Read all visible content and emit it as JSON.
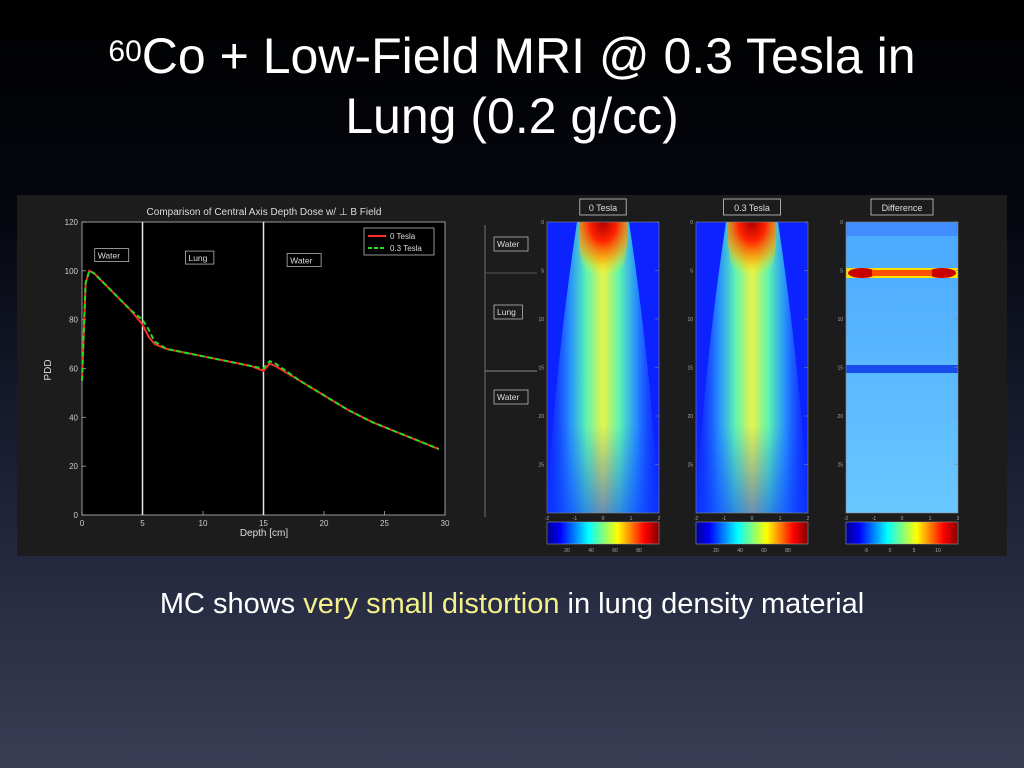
{
  "slide": {
    "title_sup": "60",
    "title_line1_rest": "Co + Low-Field MRI @ 0.3 Tesla in",
    "title_line2": "Lung (0.2 g/cc)",
    "subtitle_pre": "MC shows ",
    "subtitle_highlight": "very small distortion",
    "subtitle_post": " in lung density material"
  },
  "colors": {
    "series_0T": "#ff2a2a",
    "series_03T": "#22dd22",
    "highlight": "#f4f08a"
  },
  "chart_data": [
    {
      "type": "line",
      "title": "Comparison of Central Axis Depth Dose w/ ⊥ B Field",
      "xlabel": "Depth [cm]",
      "ylabel": "PDD",
      "xlim": [
        0,
        30
      ],
      "ylim": [
        0,
        120
      ],
      "xticks": [
        0,
        5,
        10,
        15,
        20,
        25,
        30
      ],
      "yticks": [
        0,
        20,
        40,
        60,
        80,
        100,
        120
      ],
      "grid": false,
      "legend_position": "top-right",
      "region_labels": [
        "Water",
        "Lung",
        "Water"
      ],
      "boundaries": [
        5,
        15
      ],
      "series": [
        {
          "name": "0 Tesla",
          "x": [
            0,
            0.3,
            0.6,
            1,
            2,
            3,
            4,
            5,
            5.5,
            6,
            7,
            8,
            10,
            12,
            14,
            15,
            15.5,
            16,
            18,
            20,
            22,
            24,
            26,
            28,
            29.5
          ],
          "values": [
            55,
            95,
            100,
            99,
            94,
            89,
            84,
            78,
            73,
            70,
            68,
            67,
            65,
            63,
            61,
            59,
            62,
            61,
            55,
            49,
            43,
            38,
            34,
            30,
            27
          ]
        },
        {
          "name": "0.3 Tesla",
          "x": [
            0,
            0.3,
            0.6,
            1,
            2,
            3,
            4,
            5,
            5.5,
            6,
            7,
            8,
            10,
            12,
            14,
            15,
            15.5,
            16,
            18,
            20,
            22,
            24,
            26,
            28,
            29.5
          ],
          "values": [
            55,
            95,
            100,
            99,
            94,
            89,
            84,
            80,
            76,
            71,
            68,
            67,
            65,
            63,
            61,
            60,
            63,
            62,
            55,
            49,
            43,
            38,
            34,
            30,
            27
          ]
        }
      ]
    },
    {
      "type": "heatmap",
      "panels": [
        {
          "title": "0 Tesla",
          "yticks": [
            0,
            5,
            10,
            15,
            20,
            25
          ],
          "xticks": [
            -2,
            -1,
            0,
            1,
            2
          ],
          "colorbar_ticks": [
            "20",
            "40",
            "60",
            "80"
          ]
        },
        {
          "title": "0.3 Tesla",
          "yticks": [
            0,
            5,
            10,
            15,
            20,
            25
          ],
          "xticks": [
            -2,
            -1,
            0,
            1,
            2
          ],
          "colorbar_ticks": [
            "20",
            "40",
            "60",
            "80"
          ]
        },
        {
          "title": "Difference",
          "yticks": [
            0,
            5,
            10,
            15,
            20,
            25
          ],
          "xticks": [
            -2,
            -1,
            0,
            1,
            2
          ],
          "colorbar_ticks": [
            "-5",
            "0",
            "5",
            "10"
          ]
        }
      ],
      "region_labels": [
        "Water",
        "Lung",
        "Water"
      ]
    }
  ]
}
